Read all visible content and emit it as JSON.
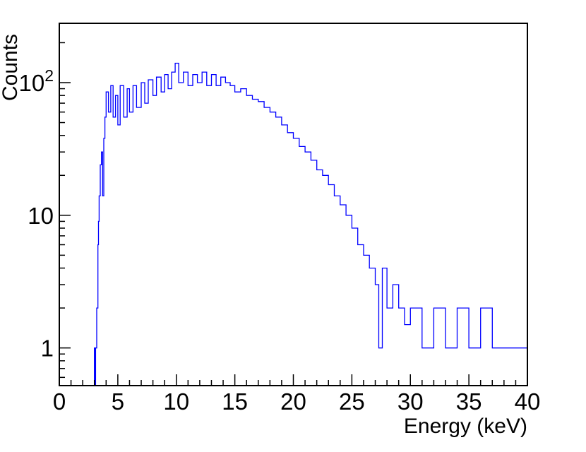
{
  "chart_data": {
    "type": "line",
    "title": "",
    "xlabel": "Energy (keV)",
    "ylabel": "Counts",
    "xlim": [
      0,
      40
    ],
    "ylim": [
      0.52,
      280
    ],
    "y_scale": "log",
    "grid": false,
    "legend": "none",
    "line_color": "#0000ff",
    "x_ticks": [
      "0",
      "5",
      "10",
      "15",
      "20",
      "25",
      "30",
      "35",
      "40"
    ],
    "y_ticks": [
      {
        "value": 1,
        "base": "1",
        "exp": ""
      },
      {
        "value": 10,
        "base": "10",
        "exp": ""
      },
      {
        "value": 100,
        "base": "10",
        "exp": "2"
      }
    ],
    "series": [
      {
        "x": [
          0,
          2.9,
          3.0,
          3.05,
          3.1,
          3.2,
          3.3,
          3.35,
          3.4,
          3.5,
          3.6,
          3.7,
          3.8,
          3.9,
          4.0,
          4.2,
          4.4,
          4.6,
          4.8,
          5.0,
          5.2,
          5.5,
          5.8,
          6.0,
          6.3,
          6.6,
          7.0,
          7.3,
          7.6,
          8.0,
          8.3,
          8.7,
          9.0,
          9.3,
          9.6,
          9.9,
          10.2,
          10.6,
          11.0,
          11.4,
          11.8,
          12.2,
          12.6,
          13.0,
          13.4,
          13.8,
          14.2,
          14.6,
          15.0,
          15.5,
          16.0,
          16.5,
          17.0,
          17.5,
          18.0,
          18.5,
          19.0,
          19.5,
          20.0,
          20.5,
          21.0,
          21.5,
          22.0,
          22.5,
          23.0,
          23.5,
          24.0,
          24.5,
          25.0,
          25.5,
          26.0,
          26.5,
          27.0,
          27.3,
          27.6,
          28.0,
          28.5,
          29.0,
          29.5,
          30.0,
          31.0,
          32.0,
          33.0,
          34.0,
          35.0,
          36.0,
          37.0,
          38.0,
          39.0,
          40.0
        ],
        "y": [
          0.52,
          0.52,
          1,
          0.52,
          1,
          2,
          6,
          9,
          14,
          24,
          30,
          14,
          38,
          55,
          85,
          60,
          95,
          55,
          80,
          48,
          95,
          55,
          90,
          60,
          95,
          65,
          100,
          70,
          105,
          80,
          110,
          85,
          115,
          90,
          120,
          140,
          100,
          120,
          95,
          115,
          100,
          120,
          95,
          115,
          95,
          110,
          100,
          95,
          85,
          90,
          80,
          75,
          72,
          65,
          60,
          55,
          48,
          42,
          38,
          33,
          30,
          26,
          22,
          20,
          17,
          14,
          12,
          10,
          8,
          6,
          5,
          4,
          3,
          1,
          4,
          2,
          3,
          2,
          1.5,
          2,
          1,
          2,
          1,
          2,
          1,
          2,
          1,
          1,
          1,
          1
        ]
      }
    ]
  }
}
